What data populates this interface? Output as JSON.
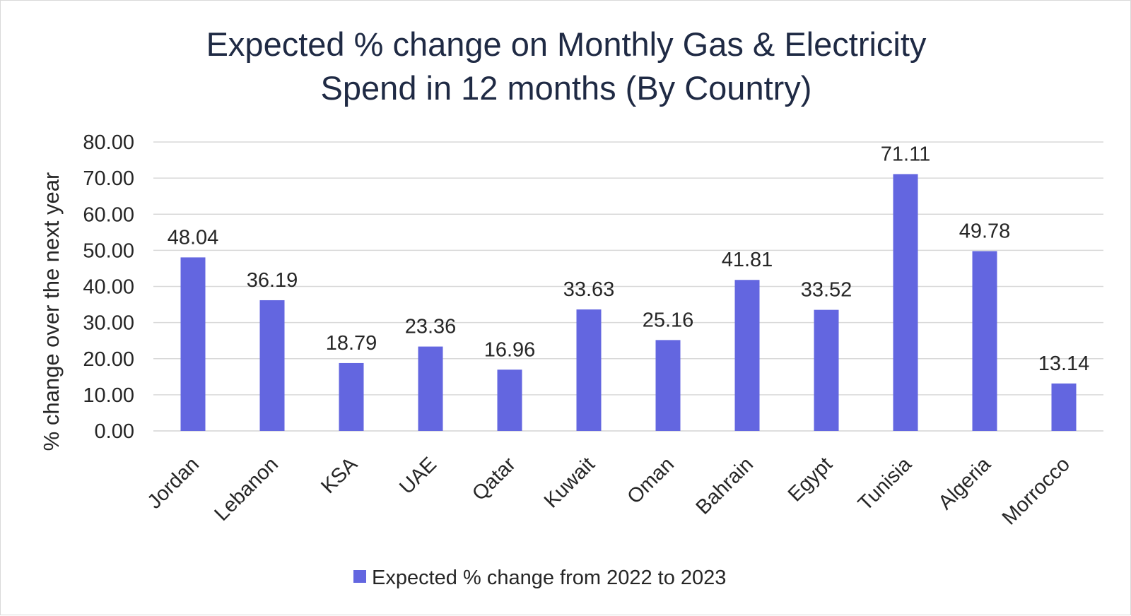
{
  "chart_data": {
    "type": "bar",
    "title_lines": [
      "Expected % change on Monthly Gas & Electricity",
      "Spend in 12 months (By Country)"
    ],
    "ylabel": "% change over the next year",
    "xlabel": "",
    "ylim": [
      0,
      80
    ],
    "yticks": [
      "0.00",
      "10.00",
      "20.00",
      "30.00",
      "40.00",
      "50.00",
      "60.00",
      "70.00",
      "80.00"
    ],
    "grid": true,
    "legend_position": "bottom",
    "bar_color": "#6366e0",
    "categories": [
      "Jordan",
      "Lebanon",
      "KSA",
      "UAE",
      "Qatar",
      "Kuwait",
      "Oman",
      "Bahrain",
      "Egypt",
      "Tunisia",
      "Algeria",
      "Morrocco"
    ],
    "series": [
      {
        "name": "Expected % change from 2022 to 2023",
        "values": [
          48.04,
          36.19,
          18.79,
          23.36,
          16.96,
          33.63,
          25.16,
          41.81,
          33.52,
          71.11,
          49.78,
          13.14
        ],
        "labels": [
          "48.04",
          "36.19",
          "18.79",
          "23.36",
          "16.96",
          "33.63",
          "25.16",
          "41.81",
          "33.52",
          "71.11",
          "49.78",
          "13.14"
        ]
      }
    ]
  }
}
